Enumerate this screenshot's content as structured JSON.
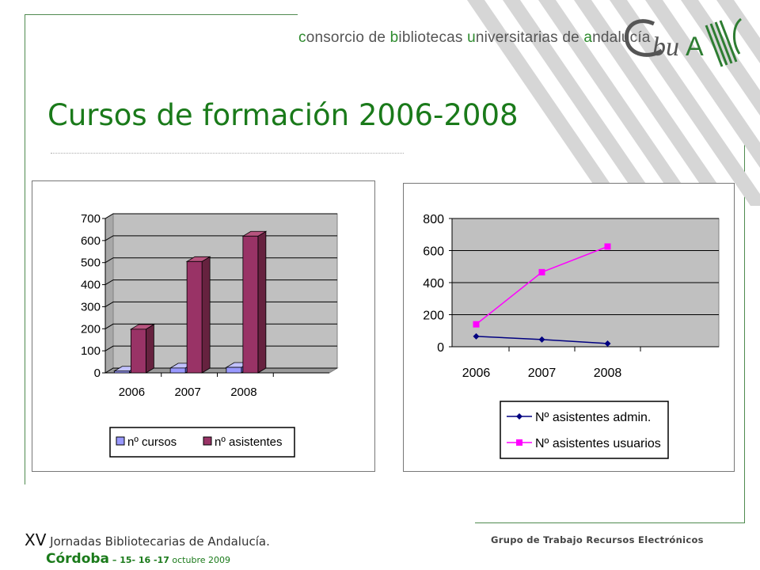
{
  "header": {
    "consortium_parts": [
      {
        "text": "c",
        "hl": true
      },
      {
        "text": "onsorcio de ",
        "hl": false
      },
      {
        "text": "b",
        "hl": true
      },
      {
        "text": "ibliotecas ",
        "hl": false
      },
      {
        "text": "u",
        "hl": true
      },
      {
        "text": "niversitarias de ",
        "hl": false
      },
      {
        "text": "a",
        "hl": true
      },
      {
        "text": "ndalucía",
        "hl": false
      }
    ],
    "logo_text": "CbuA"
  },
  "title": "Cursos de formación 2006-2008",
  "colors": {
    "brand_green": "#1a7a1a",
    "bar_cursos": "#9999ff",
    "bar_asistentes": "#993366",
    "line_admin": "#000080",
    "line_usuarios": "#ff00ff",
    "plot_bg": "#c0c0c0"
  },
  "chart_data": [
    {
      "type": "bar",
      "categories": [
        "2006",
        "2007",
        "2008"
      ],
      "series": [
        {
          "name": "nº cursos",
          "values": [
            8,
            22,
            25
          ]
        },
        {
          "name": "nº asistentes",
          "values": [
            198,
            505,
            620
          ]
        }
      ],
      "yticks": [
        "0",
        "100",
        "200",
        "300",
        "400",
        "500",
        "600",
        "700"
      ],
      "ylim": [
        0,
        700
      ],
      "grid": true,
      "three_d": true,
      "legend_position": "bottom"
    },
    {
      "type": "line",
      "categories": [
        "2006",
        "2007",
        "2008"
      ],
      "series": [
        {
          "name": "Nº asistentes admin.",
          "values": [
            65,
            45,
            20
          ],
          "marker": "diamond"
        },
        {
          "name": "Nº asistentes usuarios",
          "values": [
            140,
            465,
            625
          ],
          "marker": "square"
        }
      ],
      "yticks": [
        "0",
        "200",
        "400",
        "600",
        "800"
      ],
      "ylim": [
        0,
        800
      ],
      "grid": true,
      "legend_position": "bottom"
    }
  ],
  "footer": {
    "roman": "XV",
    "event": " Jornadas Bibliotecarias de Andalucía.",
    "city": "Córdoba",
    "dates_bold": " – 15- 16 -17",
    "dates_month": " octubre 2009",
    "group": "Grupo de Trabajo Recursos Electrónicos"
  }
}
